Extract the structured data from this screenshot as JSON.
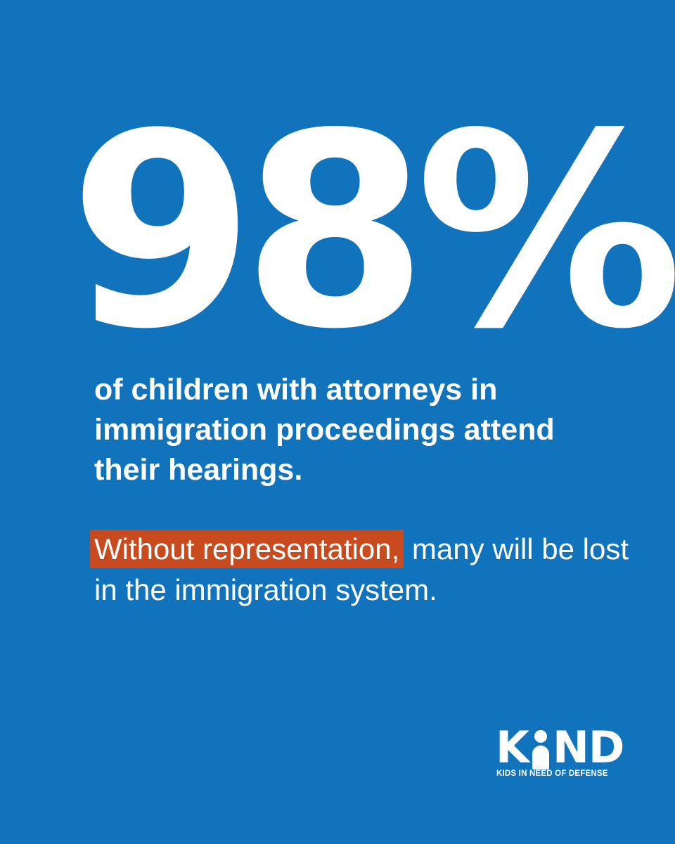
{
  "stat": {
    "value": "98%"
  },
  "headline": {
    "text": "of children with attorneys in immigration proceedings attend their hearings."
  },
  "subline": {
    "highlight": "Without representation,",
    "rest": " many will be lost in the immigration system."
  },
  "logo": {
    "letter_k": "K",
    "letters_nd": "ND",
    "tagline": "KIDS IN NEED OF DEFENSE"
  },
  "colors": {
    "background": "#1273bd",
    "highlight": "#c74b1f",
    "text": "#ffffff"
  }
}
